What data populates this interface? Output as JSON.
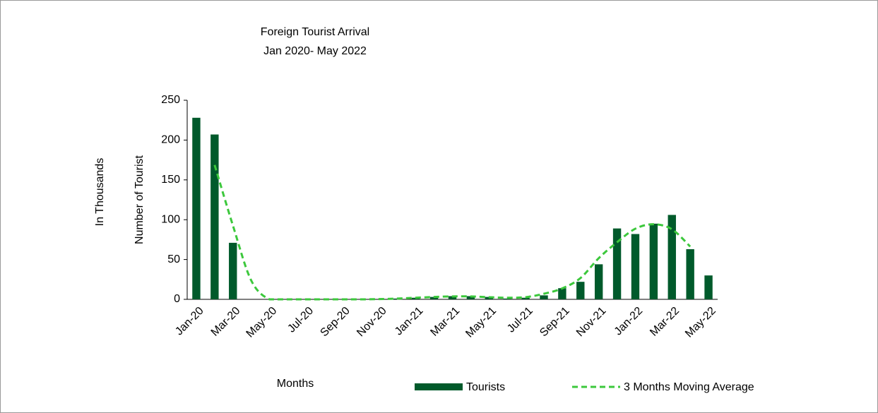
{
  "chart_data": {
    "type": "bar_line",
    "title": [
      "Foreign Tourist Arrival",
      "Jan 2020- May 2022"
    ],
    "y_axis_label": "Number of Tourist",
    "unit_label": "In Thousands",
    "x_axis_label": "Months",
    "categories": [
      "Jan-20",
      null,
      "Mar-20",
      null,
      "May-20",
      null,
      "Jul-20",
      null,
      "Sep-20",
      null,
      "Nov-20",
      null,
      "Jan-21",
      null,
      "Mar-21",
      null,
      "May-21",
      null,
      "Jul-21",
      null,
      "Sep-21",
      null,
      "Nov-21",
      null,
      "Jan-22",
      null,
      "Mar-22",
      null,
      "May-22"
    ],
    "series": [
      {
        "name": "Tourists",
        "color": "#005a2b",
        "kind": "bar",
        "values": [
          228,
          207,
          71,
          0,
          0,
          0,
          0,
          0,
          0,
          0,
          0,
          1,
          2,
          3,
          4,
          4,
          3,
          1,
          2,
          5,
          14,
          22,
          44,
          89,
          82,
          95,
          106,
          63,
          30
        ]
      },
      {
        "name": "3 Months Moving Average",
        "color": "#3cc83c",
        "kind": "line",
        "values": [
          null,
          168.7,
          92.7,
          23.7,
          0,
          0,
          0,
          0,
          0,
          0,
          0.3,
          1,
          2,
          3,
          3.7,
          3.7,
          2.7,
          2,
          2.7,
          7,
          13.7,
          26.7,
          51.7,
          71.7,
          88.7,
          94.3,
          88,
          66.3,
          null
        ]
      }
    ],
    "ylim": [
      0,
      250
    ],
    "yticks": [
      0,
      50,
      100,
      150,
      200,
      250
    ],
    "grid": false
  }
}
